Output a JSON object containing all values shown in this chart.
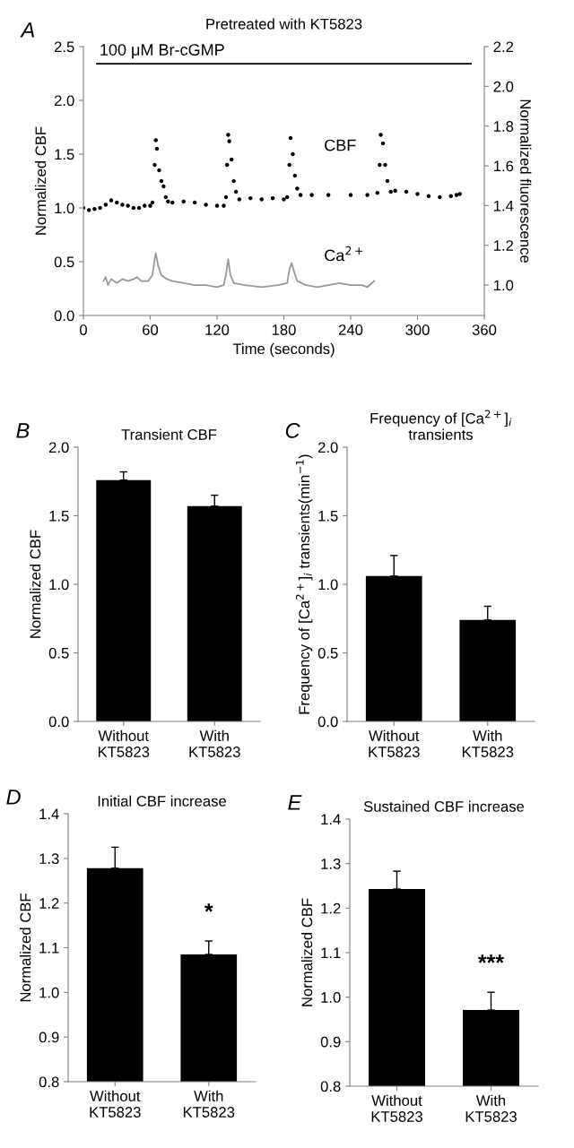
{
  "chart_data": [
    {
      "type": "line",
      "title": "Pretreated with KT5823",
      "xlabel": "Time (seconds)",
      "ylabel": "Normalized CBF",
      "y2label": "Normalized fluorescence",
      "annotations": [
        "A"
      ],
      "xlim": [
        0,
        360
      ],
      "xticks": [
        0,
        60,
        120,
        180,
        240,
        300,
        360
      ],
      "ylim": [
        0,
        2.5
      ],
      "yticks": [
        {
          "value": 0,
          "label": "0.0"
        },
        {
          "value": 0.5,
          "label": "0.5"
        },
        {
          "value": 1.0,
          "label": "1.0"
        },
        {
          "value": 1.5,
          "label": "1.5"
        },
        {
          "value": 2.0,
          "label": "2.0"
        },
        {
          "value": 2.5,
          "label": "2.5"
        }
      ],
      "y2lim": [
        0.847,
        2.2
      ],
      "y2ticks": [
        {
          "value": 1.0,
          "label": "1.0"
        },
        {
          "value": 1.2,
          "label": "1.2"
        },
        {
          "value": 1.4,
          "label": "1.4"
        },
        {
          "value": 1.6,
          "label": "1.6"
        },
        {
          "value": 1.8,
          "label": "1.8"
        },
        {
          "value": 2.0,
          "label": "2.0"
        },
        {
          "value": 2.2,
          "label": "2.2"
        }
      ],
      "series": [
        {
          "name": "100 μM Br-cGMP",
          "type": "line",
          "color": "#000000",
          "x": [
            12,
            348
          ],
          "values": [
            2.34,
            2.34
          ]
        },
        {
          "name": "CBF",
          "type": "scatter",
          "color": "#000000",
          "x": [
            0,
            5,
            10,
            15,
            20,
            25,
            30,
            35,
            40,
            45,
            50,
            55,
            60,
            62,
            64,
            65,
            66,
            68,
            70,
            72,
            74,
            76,
            80,
            90,
            100,
            110,
            120,
            126,
            128,
            129,
            130,
            131,
            133,
            135,
            137,
            140,
            150,
            160,
            170,
            180,
            183,
            185,
            186,
            188,
            190,
            192,
            195,
            205,
            220,
            240,
            255,
            264,
            266,
            267,
            269,
            271,
            273,
            276,
            280,
            290,
            300,
            310,
            320,
            330,
            335,
            338
          ],
          "values": [
            1.0,
            0.98,
            0.99,
            1.0,
            1.03,
            1.07,
            1.05,
            1.03,
            1.02,
            1.0,
            1.0,
            1.02,
            1.02,
            1.05,
            1.4,
            1.63,
            1.55,
            1.35,
            1.25,
            1.2,
            1.1,
            1.06,
            1.05,
            1.06,
            1.05,
            1.03,
            1.02,
            1.02,
            1.1,
            1.4,
            1.68,
            1.62,
            1.45,
            1.25,
            1.15,
            1.08,
            1.09,
            1.08,
            1.09,
            1.08,
            1.1,
            1.4,
            1.65,
            1.5,
            1.3,
            1.18,
            1.12,
            1.12,
            1.12,
            1.12,
            1.12,
            1.14,
            1.4,
            1.68,
            1.6,
            1.4,
            1.25,
            1.15,
            1.16,
            1.15,
            1.13,
            1.11,
            1.1,
            1.11,
            1.12,
            1.13
          ]
        },
        {
          "name": "Ca$^{2+}$",
          "type": "line",
          "axis": "y2",
          "color": "#999999",
          "x": [
            18,
            20,
            22,
            25,
            30,
            35,
            40,
            45,
            48,
            52,
            58,
            62,
            64,
            65,
            67,
            70,
            75,
            80,
            90,
            100,
            110,
            120,
            126,
            128,
            130,
            132,
            135,
            145,
            160,
            175,
            183,
            185,
            187,
            189,
            192,
            200,
            210,
            220,
            230,
            240,
            250,
            255,
            261
          ],
          "values": [
            1.02,
            1.04,
            1.0,
            1.03,
            1.01,
            1.03,
            1.02,
            1.03,
            1.04,
            1.02,
            1.02,
            1.05,
            1.13,
            1.16,
            1.1,
            1.05,
            1.03,
            1.02,
            1.01,
            1.0,
            1.0,
            0.99,
            1.0,
            1.05,
            1.13,
            1.05,
            1.01,
            1.0,
            0.99,
            1.0,
            1.01,
            1.08,
            1.11,
            1.07,
            1.02,
            1.0,
            0.99,
            1.0,
            1.01,
            1.0,
            1.0,
            0.99,
            1.02
          ]
        }
      ]
    },
    {
      "type": "bar",
      "title": "Transient CBF",
      "ylabel": "Normalized CBF",
      "annotations": [
        "B"
      ],
      "categories": [
        "Without\nKT5823",
        "With\nKT5823"
      ],
      "values": [
        1.76,
        1.57
      ],
      "errors": [
        0.06,
        0.08
      ],
      "color": "#000000",
      "ylim": [
        0,
        2.0
      ],
      "yticks": [
        {
          "value": 0,
          "label": "0.0"
        },
        {
          "value": 0.5,
          "label": "0.5"
        },
        {
          "value": 1.0,
          "label": "1.0"
        },
        {
          "value": 1.5,
          "label": "1.5"
        },
        {
          "value": 2.0,
          "label": "2.0"
        }
      ]
    },
    {
      "type": "bar",
      "title": "Frequency of [Ca$^{2+}$]$_{i}$\ntransients",
      "ylabel": "Frequency of [Ca$^{2+}$]$_{i}$ transients(min$^{−1}$)",
      "annotations": [
        "C"
      ],
      "categories": [
        "Without\nKT5823",
        "With\nKT5823"
      ],
      "values": [
        1.06,
        0.74
      ],
      "errors": [
        0.15,
        0.1
      ],
      "color": "#000000",
      "ylim": [
        0,
        2.0
      ],
      "yticks": [
        {
          "value": 0,
          "label": "0.0"
        },
        {
          "value": 0.5,
          "label": "0.5"
        },
        {
          "value": 1.0,
          "label": "1.0"
        },
        {
          "value": 1.5,
          "label": "1.5"
        },
        {
          "value": 2.0,
          "label": "2.0"
        }
      ]
    },
    {
      "type": "bar",
      "title": "Initial CBF increase",
      "ylabel": "Normalized CBF",
      "annotations": [
        "D",
        "*"
      ],
      "categories": [
        "Without\nKT5823",
        "With\nKT5823"
      ],
      "values": [
        1.278,
        1.085
      ],
      "errors": [
        0.047,
        0.03
      ],
      "color": "#000000",
      "ylim": [
        0.8,
        1.4
      ],
      "yticks": [
        {
          "value": 0.8,
          "label": "0.8"
        },
        {
          "value": 0.9,
          "label": "0.9"
        },
        {
          "value": 1.0,
          "label": "1.0"
        },
        {
          "value": 1.1,
          "label": "1.1"
        },
        {
          "value": 1.2,
          "label": "1.2"
        },
        {
          "value": 1.3,
          "label": "1.3"
        },
        {
          "value": 1.4,
          "label": "1.4"
        }
      ]
    },
    {
      "type": "bar",
      "title": "Sustained CBF increase",
      "ylabel": "Normalized CBF",
      "annotations": [
        "E",
        "***"
      ],
      "categories": [
        "Without\nKT5823",
        "With\nKT5823"
      ],
      "values": [
        1.243,
        0.971
      ],
      "errors": [
        0.04,
        0.04
      ],
      "color": "#000000",
      "ylim": [
        0.8,
        1.4
      ],
      "yticks": [
        {
          "value": 0.8,
          "label": "0.8"
        },
        {
          "value": 0.9,
          "label": "0.9"
        },
        {
          "value": 1.0,
          "label": "1.0"
        },
        {
          "value": 1.1,
          "label": "1.1"
        },
        {
          "value": 1.2,
          "label": "1.2"
        },
        {
          "value": 1.3,
          "label": "1.3"
        },
        {
          "value": 1.4,
          "label": "1.4"
        }
      ]
    }
  ]
}
